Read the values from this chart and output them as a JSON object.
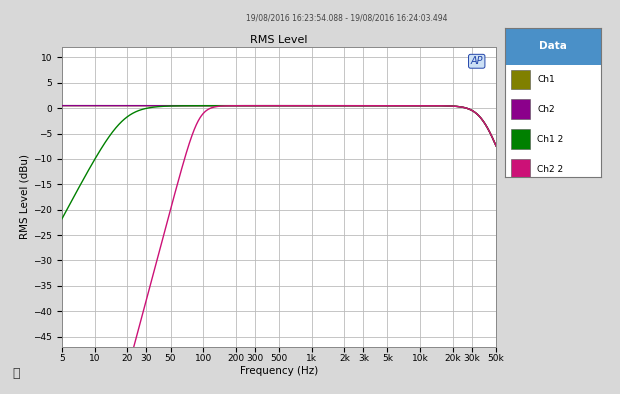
{
  "title": "RMS Level",
  "subtitle": "19/08/2016 16:23:54.088 - 19/08/2016 16:24:03.494",
  "ylabel": "RMS Level (dBu)",
  "xlabel": "Frequency (Hz)",
  "ylim": [
    -47,
    12
  ],
  "yticks": [
    10,
    5,
    0,
    -5,
    -10,
    -15,
    -20,
    -25,
    -30,
    -35,
    -40,
    -45
  ],
  "freq_ticks": [
    5,
    10,
    20,
    30,
    50,
    100,
    200,
    300,
    500,
    1000,
    2000,
    3000,
    5000,
    10000,
    20000,
    30000,
    50000
  ],
  "freq_labels": [
    "5",
    "10",
    "20",
    "30",
    "50",
    "100",
    "200",
    "300",
    "500",
    "1k",
    "2k",
    "3k",
    "5k",
    "10k",
    "20k",
    "30k",
    "50k"
  ],
  "xlim_min": 5,
  "xlim_max": 50000,
  "bg_color": "#d8d8d8",
  "plot_bg": "#ffffff",
  "grid_color": "#bbbbbb",
  "legend_header_color": "#4a90c8",
  "legend_header_text": "Data",
  "ch1_color": "#808000",
  "ch2_color": "#8B008B",
  "ch1_2_color": "#008000",
  "ch2_2_color": "#cc1177",
  "ch1_label": "Ch1",
  "ch2_label": "Ch2",
  "ch1_2_label": "Ch1 2",
  "ch2_2_label": "Ch2 2",
  "hp1_fc": 18,
  "hp1_order": 2,
  "hp2_fc": 90,
  "hp2_order": 4,
  "high_fc": 38000,
  "high_order": 3
}
